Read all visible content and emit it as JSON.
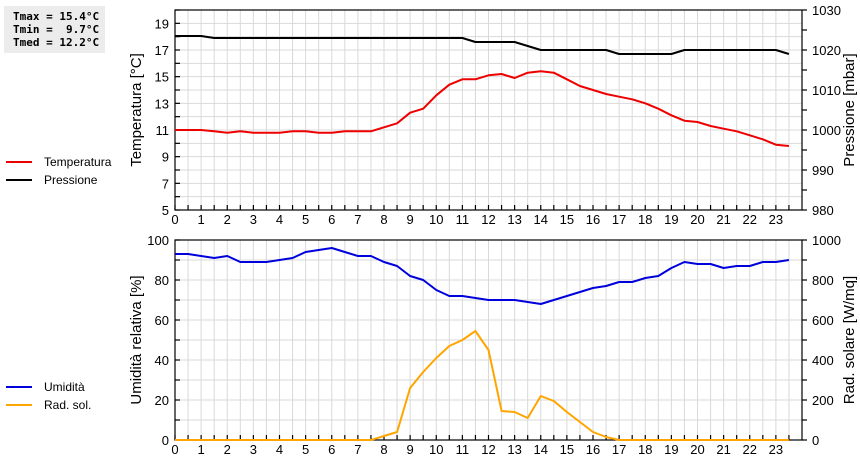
{
  "stats": {
    "tmax": "Tmax = 15.4°C",
    "tmin": "Tmin =  9.7°C",
    "tmed": "Tmed = 12.2°C"
  },
  "legend_top": [
    {
      "label": "Temperatura",
      "color": "#ee0000"
    },
    {
      "label": "Pressione",
      "color": "#000000"
    }
  ],
  "legend_bottom": [
    {
      "label": "Umidità",
      "color": "#0000dd"
    },
    {
      "label": "Rad. sol.",
      "color": "#ffa500"
    }
  ],
  "chart_data": [
    {
      "type": "line",
      "title": "",
      "xlabel": "",
      "ylabel": "Temperatura [°C]",
      "y2label": "Pressione [mbar]",
      "xlim": [
        0,
        24
      ],
      "ylim": [
        5,
        20
      ],
      "y2lim": [
        980,
        1030
      ],
      "x_ticks": [
        0,
        1,
        2,
        3,
        4,
        5,
        6,
        7,
        8,
        9,
        10,
        11,
        12,
        13,
        14,
        15,
        16,
        17,
        18,
        19,
        20,
        21,
        22,
        23
      ],
      "y_ticks": [
        5,
        7,
        9,
        11,
        13,
        15,
        17,
        19
      ],
      "y2_ticks": [
        980,
        990,
        1000,
        1010,
        1020,
        1030
      ],
      "grid": true,
      "x": [
        0,
        0.5,
        1,
        1.5,
        2,
        2.5,
        3,
        3.5,
        4,
        4.5,
        5,
        5.5,
        6,
        6.5,
        7,
        7.5,
        8,
        8.5,
        9,
        9.5,
        10,
        10.5,
        11,
        11.5,
        12,
        12.5,
        13,
        13.5,
        14,
        14.5,
        15,
        15.5,
        16,
        16.5,
        17,
        17.5,
        18,
        18.5,
        19,
        19.5,
        20,
        20.5,
        21,
        21.5,
        22,
        22.5,
        23,
        23.5
      ],
      "series": [
        {
          "name": "Temperatura",
          "axis": "left",
          "color": "#ee0000",
          "values": [
            11.0,
            11.0,
            11.0,
            10.9,
            10.8,
            10.9,
            10.8,
            10.8,
            10.8,
            10.9,
            10.9,
            10.8,
            10.8,
            10.9,
            10.9,
            10.9,
            11.2,
            11.5,
            12.3,
            12.6,
            13.6,
            14.4,
            14.8,
            14.8,
            15.1,
            15.2,
            14.9,
            15.3,
            15.4,
            15.3,
            14.8,
            14.3,
            14.0,
            13.7,
            13.5,
            13.3,
            13.0,
            12.6,
            12.1,
            11.7,
            11.6,
            11.3,
            11.1,
            10.9,
            10.6,
            10.3,
            9.9,
            9.8
          ]
        },
        {
          "name": "Pressione",
          "axis": "right",
          "color": "#000000",
          "values": [
            1023.5,
            1023.5,
            1023.5,
            1023,
            1023,
            1023,
            1023,
            1023,
            1023,
            1023,
            1023,
            1023,
            1023,
            1023,
            1023,
            1023,
            1023,
            1023,
            1023,
            1023,
            1023,
            1023,
            1023,
            1022,
            1022,
            1022,
            1022,
            1021,
            1020,
            1020,
            1020,
            1020,
            1020,
            1020,
            1019,
            1019,
            1019,
            1019,
            1019,
            1020,
            1020,
            1020,
            1020,
            1020,
            1020,
            1020,
            1020,
            1019
          ]
        }
      ]
    },
    {
      "type": "line",
      "title": "",
      "xlabel": "",
      "ylabel": "Umidità relativa [%]",
      "y2label": "Rad. solare [W/mq]",
      "xlim": [
        0,
        24
      ],
      "ylim": [
        0,
        100
      ],
      "y2lim": [
        0,
        1000
      ],
      "x_ticks": [
        0,
        1,
        2,
        3,
        4,
        5,
        6,
        7,
        8,
        9,
        10,
        11,
        12,
        13,
        14,
        15,
        16,
        17,
        18,
        19,
        20,
        21,
        22,
        23
      ],
      "y_ticks": [
        0,
        20,
        40,
        60,
        80,
        100
      ],
      "y2_ticks": [
        0,
        200,
        400,
        600,
        800,
        1000
      ],
      "grid": true,
      "x": [
        0,
        0.5,
        1,
        1.5,
        2,
        2.5,
        3,
        3.5,
        4,
        4.5,
        5,
        5.5,
        6,
        6.5,
        7,
        7.5,
        8,
        8.5,
        9,
        9.5,
        10,
        10.5,
        11,
        11.5,
        12,
        12.5,
        13,
        13.5,
        14,
        14.5,
        15,
        15.5,
        16,
        16.5,
        17,
        17.5,
        18,
        18.5,
        19,
        19.5,
        20,
        20.5,
        21,
        21.5,
        22,
        22.5,
        23,
        23.5
      ],
      "series": [
        {
          "name": "Umidità",
          "axis": "left",
          "color": "#0000dd",
          "values": [
            93,
            93,
            92,
            91,
            92,
            89,
            89,
            89,
            90,
            91,
            94,
            95,
            96,
            94,
            92,
            92,
            89,
            87,
            82,
            80,
            75,
            72,
            72,
            71,
            70,
            70,
            70,
            69,
            68,
            70,
            72,
            74,
            76,
            77,
            79,
            79,
            81,
            82,
            86,
            89,
            88,
            88,
            86,
            87,
            87,
            89,
            89,
            90
          ]
        },
        {
          "name": "Rad. sol.",
          "axis": "right",
          "color": "#ffa500",
          "values": [
            0,
            0,
            0,
            0,
            0,
            0,
            0,
            0,
            0,
            0,
            0,
            0,
            0,
            0,
            0,
            0,
            20,
            40,
            260,
            340,
            410,
            470,
            500,
            545,
            450,
            145,
            140,
            110,
            220,
            195,
            140,
            90,
            40,
            15,
            0,
            0,
            0,
            0,
            0,
            0,
            0,
            0,
            0,
            0,
            0,
            0,
            0,
            0
          ]
        }
      ]
    }
  ]
}
